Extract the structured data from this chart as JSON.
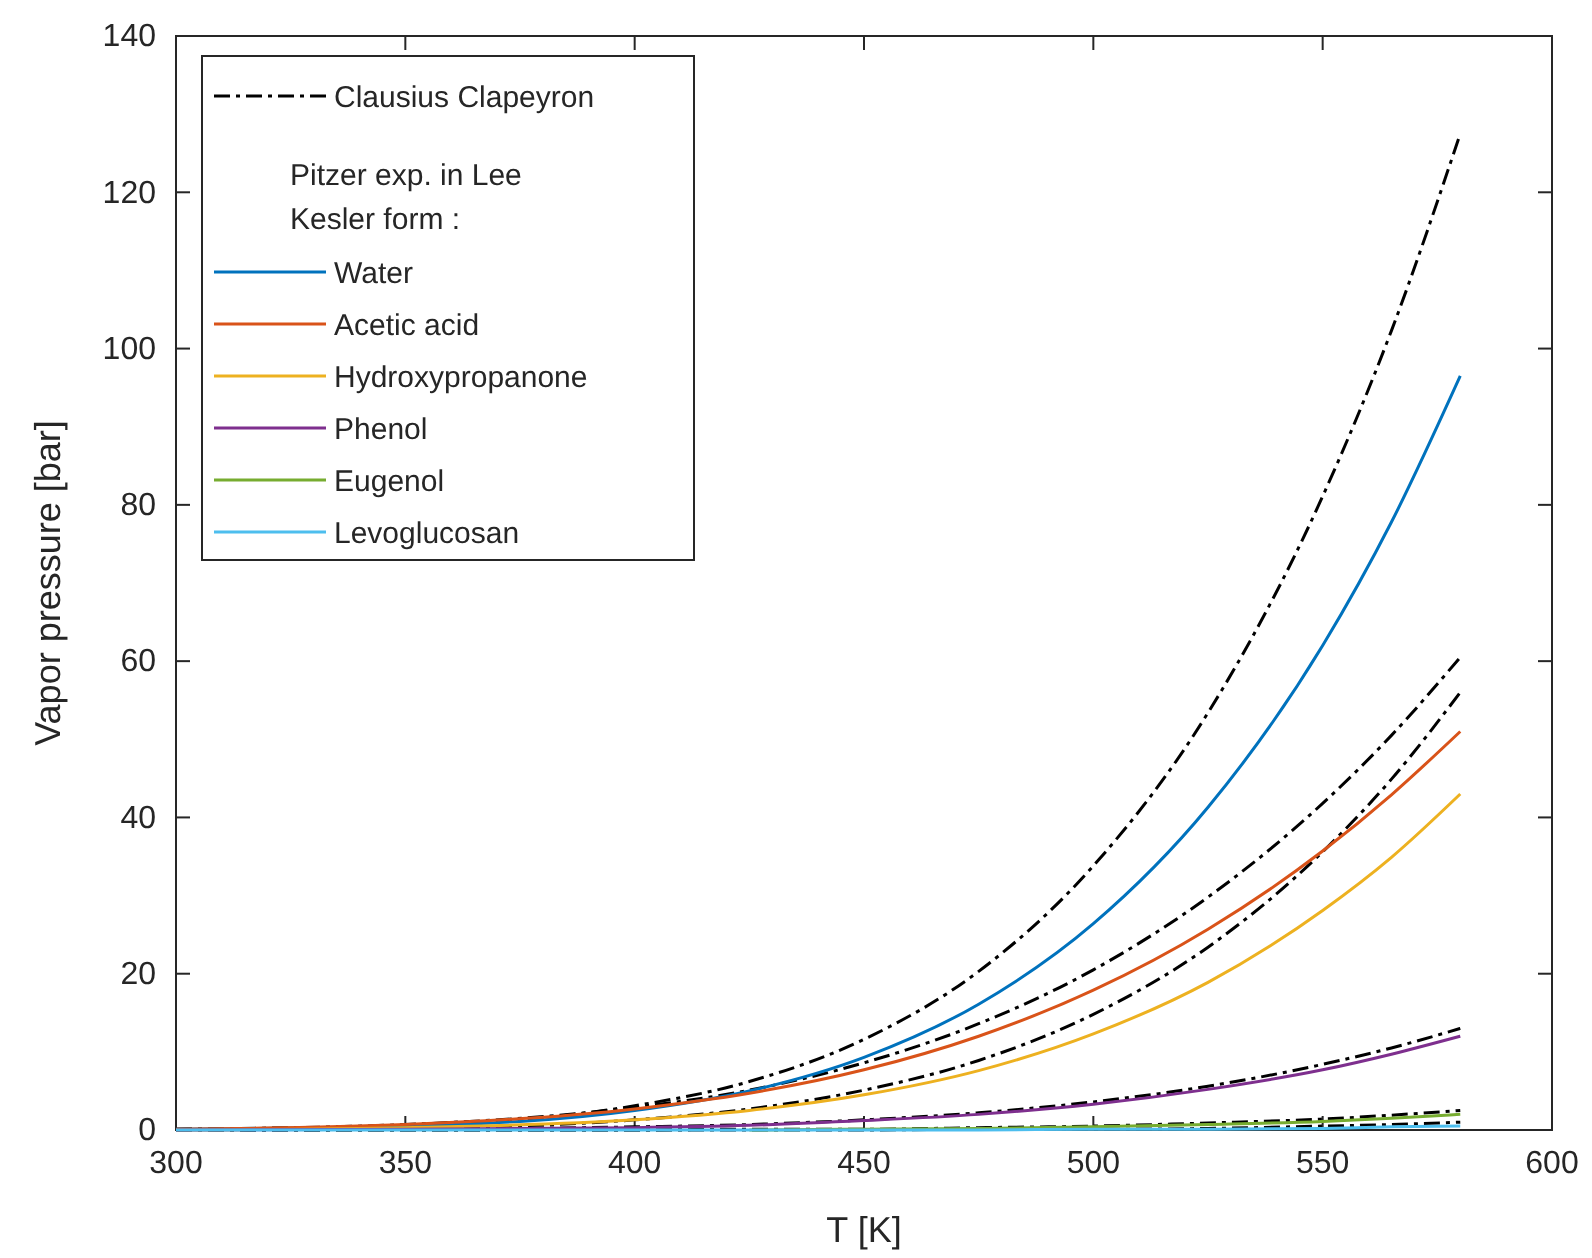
{
  "chart_data": {
    "type": "line",
    "xlabel": "T [K]",
    "ylabel": "Vapor pressure [bar]",
    "legend_title": "Pitzer exp. in Lee Kesler form :",
    "legend": "top left",
    "grid": false,
    "marker": "none",
    "x": [
      300,
      350,
      400,
      425,
      450,
      475,
      500,
      525,
      550,
      565,
      580
    ],
    "xlim": [
      300,
      600
    ],
    "xticks": [
      300,
      350,
      400,
      450,
      500,
      550,
      600
    ],
    "ylim": [
      0,
      140
    ],
    "yticks": [
      0,
      20,
      40,
      60,
      80,
      100,
      120,
      140
    ],
    "series": [
      {
        "name": "Clausius Clapeyron",
        "color": "#000000",
        "line_style": "dashdot",
        "values": [
          0.1,
          0.6,
          3.1,
          6.2,
          11.6,
          20.3,
          33.8,
          53.4,
          81.1,
          102.3,
          127.5
        ]
      },
      {
        "color": "#000000",
        "line_style": "dashdot",
        "values": [
          0.1,
          0.7,
          2.9,
          5.1,
          8.6,
          13.6,
          20.5,
          29.8,
          41.8,
          50.5,
          60.5
        ]
      },
      {
        "color": "#000000",
        "line_style": "dashdot",
        "values": [
          0,
          0.2,
          1.3,
          2.7,
          5.1,
          8.9,
          14.8,
          23.4,
          35.6,
          44.9,
          56
        ]
      },
      {
        "color": "#000000",
        "line_style": "dashdot",
        "values": [
          0,
          0.1,
          0.4,
          0.7,
          1.3,
          2.2,
          3.6,
          5.6,
          8.4,
          10.5,
          13
        ]
      },
      {
        "color": "#000000",
        "line_style": "dashdot",
        "values": [
          0,
          0,
          0,
          0.1,
          0.1,
          0.3,
          0.5,
          0.9,
          1.4,
          1.9,
          2.5
        ]
      },
      {
        "color": "#000000",
        "line_style": "dashdot",
        "values": [
          0,
          0,
          0,
          0,
          0,
          0.1,
          0.1,
          0.2,
          0.5,
          0.7,
          1
        ]
      },
      {
        "name": "Water",
        "color": "#0072bd",
        "line_style": "solid",
        "values": [
          0.1,
          0.5,
          2.5,
          5,
          9.3,
          16.1,
          26.4,
          41.3,
          62,
          77.8,
          96.5
        ]
      },
      {
        "name": "Acetic acid",
        "color": "#d95319",
        "line_style": "solid",
        "values": [
          0.1,
          0.7,
          2.7,
          4.7,
          7.7,
          12,
          17.9,
          25.7,
          35.7,
          42.9,
          51
        ]
      },
      {
        "name": "Hydroxypropanone",
        "color": "#edb120",
        "line_style": "solid",
        "values": [
          0,
          0.3,
          1.3,
          2.5,
          4.5,
          7.6,
          12.3,
          18.9,
          28.1,
          34.9,
          43
        ]
      },
      {
        "name": "Phenol",
        "color": "#7e2f8e",
        "line_style": "solid",
        "values": [
          0,
          0.1,
          0.3,
          0.6,
          1.2,
          2,
          3.3,
          5.2,
          7.7,
          9.7,
          12
        ]
      },
      {
        "name": "Eugenol",
        "color": "#77ac30",
        "line_style": "solid",
        "values": [
          null,
          null,
          null,
          0,
          0.1,
          0.2,
          0.4,
          0.7,
          1.1,
          1.5,
          2
        ]
      },
      {
        "name": "Levoglucosan",
        "color": "#4dbeee",
        "line_style": "solid",
        "values": [
          0,
          0,
          0,
          0,
          0,
          0,
          0.1,
          0.1,
          0.2,
          0.4,
          0.5
        ]
      }
    ]
  }
}
